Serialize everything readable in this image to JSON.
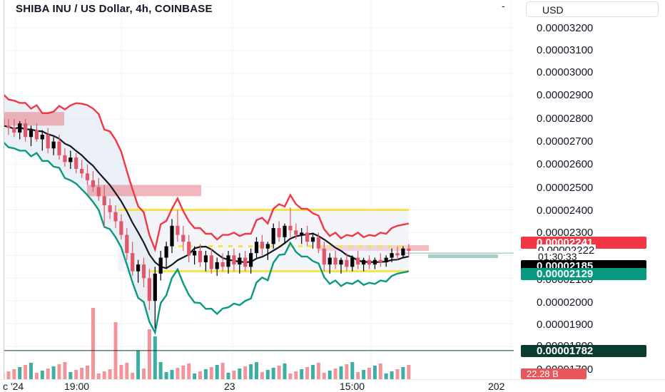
{
  "title": "SHIBA INU / US Dollar, 4h, COINBASE",
  "title_dash": "-",
  "currency_selector": "USD",
  "price_axis": {
    "ticks": [
      "0.00003200",
      "0.00003100",
      "0.00003000",
      "0.00002900",
      "0.00002800",
      "0.00002700",
      "0.00002600",
      "0.00002500",
      "0.00002400",
      "0.00002300",
      "0.00002100",
      "0.00002000",
      "0.00001900",
      "0.00001800",
      "0.00001700"
    ]
  },
  "price_tags": {
    "upper_band": "0.00002241",
    "last_price": "0.00002222",
    "countdown": "01:30:33",
    "moving_average": "0.00002185",
    "lower_band": "0.00002129",
    "horizontal_line": "0.00001782"
  },
  "volume_tag": "22.28 B",
  "time_axis": {
    "labels": [
      "c '24",
      "19:00",
      "23",
      "15:00",
      "202"
    ]
  },
  "colors": {
    "up_candle": "#000000",
    "down_candle": "#e0566a",
    "upper_band": "#f23645",
    "lower_band": "#089981",
    "moving_average": "#131722",
    "range_box_lines": "#f7e24b",
    "supply_zones": "#e8878f",
    "volume_up": "#26a69a",
    "volume_down": "#ef8a8f",
    "current_price_tag": "#f23645",
    "ma_tag": "#000000",
    "lower_tag": "#089981",
    "line_tag": "#0c3b30"
  },
  "chart_data": {
    "type": "candlestick",
    "title": "SHIBA INU / US Dollar, 4h, COINBASE",
    "ylim": [
      1.68e-05,
      3.25e-05
    ],
    "y_scale": "linear",
    "grid": true,
    "candles": [
      {
        "o": 2.8e-05,
        "h": 2.82e-05,
        "l": 2.76e-05,
        "c": 2.77e-05
      },
      {
        "o": 2.77e-05,
        "h": 2.8e-05,
        "l": 2.73e-05,
        "c": 2.76e-05
      },
      {
        "o": 2.76e-05,
        "h": 2.8e-05,
        "l": 2.72e-05,
        "c": 2.74e-05
      },
      {
        "o": 2.74e-05,
        "h": 2.79e-05,
        "l": 2.71e-05,
        "c": 2.78e-05
      },
      {
        "o": 2.78e-05,
        "h": 2.8e-05,
        "l": 2.7e-05,
        "c": 2.72e-05
      },
      {
        "o": 2.72e-05,
        "h": 2.77e-05,
        "l": 2.68e-05,
        "c": 2.75e-05
      },
      {
        "o": 2.75e-05,
        "h": 2.78e-05,
        "l": 2.7e-05,
        "c": 2.71e-05
      },
      {
        "o": 2.71e-05,
        "h": 2.75e-05,
        "l": 2.66e-05,
        "c": 2.73e-05
      },
      {
        "o": 2.73e-05,
        "h": 2.76e-05,
        "l": 2.65e-05,
        "c": 2.67e-05
      },
      {
        "o": 2.67e-05,
        "h": 2.72e-05,
        "l": 2.64e-05,
        "c": 2.7e-05
      },
      {
        "o": 2.7e-05,
        "h": 2.73e-05,
        "l": 2.62e-05,
        "c": 2.64e-05
      },
      {
        "o": 2.64e-05,
        "h": 2.67e-05,
        "l": 2.59e-05,
        "c": 2.61e-05
      },
      {
        "o": 2.61e-05,
        "h": 2.66e-05,
        "l": 2.58e-05,
        "c": 2.63e-05
      },
      {
        "o": 2.63e-05,
        "h": 2.65e-05,
        "l": 2.56e-05,
        "c": 2.58e-05
      },
      {
        "o": 2.58e-05,
        "h": 2.62e-05,
        "l": 2.54e-05,
        "c": 2.56e-05
      },
      {
        "o": 2.56e-05,
        "h": 2.6e-05,
        "l": 2.51e-05,
        "c": 2.53e-05
      },
      {
        "o": 2.53e-05,
        "h": 2.57e-05,
        "l": 2.48e-05,
        "c": 2.5e-05
      },
      {
        "o": 2.5e-05,
        "h": 2.54e-05,
        "l": 2.44e-05,
        "c": 2.46e-05
      },
      {
        "o": 2.46e-05,
        "h": 2.51e-05,
        "l": 2.32e-05,
        "c": 2.42e-05
      },
      {
        "o": 2.42e-05,
        "h": 2.45e-05,
        "l": 2.36e-05,
        "c": 2.39e-05
      },
      {
        "o": 2.39e-05,
        "h": 2.42e-05,
        "l": 2.32e-05,
        "c": 2.35e-05
      },
      {
        "o": 2.35e-05,
        "h": 2.38e-05,
        "l": 2.27e-05,
        "c": 2.29e-05
      },
      {
        "o": 2.29e-05,
        "h": 2.32e-05,
        "l": 2.18e-05,
        "c": 2.21e-05
      },
      {
        "o": 2.21e-05,
        "h": 2.26e-05,
        "l": 2.11e-05,
        "c": 2.13e-05
      },
      {
        "o": 2.13e-05,
        "h": 2.18e-05,
        "l": 2.08e-05,
        "c": 2.16e-05
      },
      {
        "o": 2.16e-05,
        "h": 2.19e-05,
        "l": 2.06e-05,
        "c": 2.1e-05
      },
      {
        "o": 2.1e-05,
        "h": 2.14e-05,
        "l": 1.96e-05,
        "c": 2e-05
      },
      {
        "o": 2e-05,
        "h": 2.15e-05,
        "l": 1.88e-05,
        "c": 2.12e-05
      },
      {
        "o": 2.12e-05,
        "h": 2.22e-05,
        "l": 2.09e-05,
        "c": 2.19e-05
      },
      {
        "o": 2.19e-05,
        "h": 2.26e-05,
        "l": 2.14e-05,
        "c": 2.24e-05
      },
      {
        "o": 2.24e-05,
        "h": 2.36e-05,
        "l": 2.21e-05,
        "c": 2.33e-05
      },
      {
        "o": 2.33e-05,
        "h": 2.4e-05,
        "l": 2.26e-05,
        "c": 2.29e-05
      },
      {
        "o": 2.29e-05,
        "h": 2.33e-05,
        "l": 2.22e-05,
        "c": 2.26e-05
      },
      {
        "o": 2.26e-05,
        "h": 2.29e-05,
        "l": 2.17e-05,
        "c": 2.2e-05
      },
      {
        "o": 2.2e-05,
        "h": 2.24e-05,
        "l": 2.16e-05,
        "c": 2.22e-05
      },
      {
        "o": 2.22e-05,
        "h": 2.25e-05,
        "l": 2.15e-05,
        "c": 2.17e-05
      },
      {
        "o": 2.17e-05,
        "h": 2.22e-05,
        "l": 2.13e-05,
        "c": 2.2e-05
      },
      {
        "o": 2.2e-05,
        "h": 2.23e-05,
        "l": 2.12e-05,
        "c": 2.14e-05
      },
      {
        "o": 2.14e-05,
        "h": 2.19e-05,
        "l": 2.11e-05,
        "c": 2.17e-05
      },
      {
        "o": 2.17e-05,
        "h": 2.21e-05,
        "l": 2.13e-05,
        "c": 2.15e-05
      },
      {
        "o": 2.15e-05,
        "h": 2.22e-05,
        "l": 2.12e-05,
        "c": 2.2e-05
      },
      {
        "o": 2.2e-05,
        "h": 2.23e-05,
        "l": 2.13e-05,
        "c": 2.16e-05
      },
      {
        "o": 2.16e-05,
        "h": 2.21e-05,
        "l": 2.12e-05,
        "c": 2.19e-05
      },
      {
        "o": 2.19e-05,
        "h": 2.22e-05,
        "l": 2.13e-05,
        "c": 2.15e-05
      },
      {
        "o": 2.15e-05,
        "h": 2.23e-05,
        "l": 2.12e-05,
        "c": 2.21e-05
      },
      {
        "o": 2.21e-05,
        "h": 2.28e-05,
        "l": 2.19e-05,
        "c": 2.26e-05
      },
      {
        "o": 2.26e-05,
        "h": 2.29e-05,
        "l": 2.2e-05,
        "c": 2.23e-05
      },
      {
        "o": 2.23e-05,
        "h": 2.26e-05,
        "l": 2.18e-05,
        "c": 2.25e-05
      },
      {
        "o": 2.25e-05,
        "h": 2.34e-05,
        "l": 2.23e-05,
        "c": 2.32e-05
      },
      {
        "o": 2.32e-05,
        "h": 2.35e-05,
        "l": 2.26e-05,
        "c": 2.28e-05
      },
      {
        "o": 2.28e-05,
        "h": 2.34e-05,
        "l": 2.25e-05,
        "c": 2.33e-05
      },
      {
        "o": 2.33e-05,
        "h": 2.41e-05,
        "l": 2.28e-05,
        "c": 2.31e-05
      },
      {
        "o": 2.31e-05,
        "h": 2.34e-05,
        "l": 2.27e-05,
        "c": 2.29e-05
      },
      {
        "o": 2.29e-05,
        "h": 2.32e-05,
        "l": 2.25e-05,
        "c": 2.3e-05
      },
      {
        "o": 2.3e-05,
        "h": 2.33e-05,
        "l": 2.24e-05,
        "c": 2.26e-05
      },
      {
        "o": 2.26e-05,
        "h": 2.3e-05,
        "l": 2.23e-05,
        "c": 2.28e-05
      },
      {
        "o": 2.28e-05,
        "h": 2.3e-05,
        "l": 2.21e-05,
        "c": 2.23e-05
      },
      {
        "o": 2.23e-05,
        "h": 2.26e-05,
        "l": 2.13e-05,
        "c": 2.16e-05
      },
      {
        "o": 2.16e-05,
        "h": 2.21e-05,
        "l": 2.12e-05,
        "c": 2.19e-05
      },
      {
        "o": 2.19e-05,
        "h": 2.22e-05,
        "l": 2.14e-05,
        "c": 2.16e-05
      },
      {
        "o": 2.16e-05,
        "h": 2.19e-05,
        "l": 2.12e-05,
        "c": 2.18e-05
      },
      {
        "o": 2.18e-05,
        "h": 2.21e-05,
        "l": 2.13e-05,
        "c": 2.15e-05
      },
      {
        "o": 2.15e-05,
        "h": 2.2e-05,
        "l": 2.13e-05,
        "c": 2.19e-05
      },
      {
        "o": 2.19e-05,
        "h": 2.22e-05,
        "l": 2.14e-05,
        "c": 2.16e-05
      },
      {
        "o": 2.16e-05,
        "h": 2.19e-05,
        "l": 2.13e-05,
        "c": 2.18e-05
      },
      {
        "o": 2.18e-05,
        "h": 2.2e-05,
        "l": 2.14e-05,
        "c": 2.16e-05
      },
      {
        "o": 2.16e-05,
        "h": 2.19e-05,
        "l": 2.14e-05,
        "c": 2.18e-05
      },
      {
        "o": 2.18e-05,
        "h": 2.21e-05,
        "l": 2.15e-05,
        "c": 2.17e-05
      },
      {
        "o": 2.17e-05,
        "h": 2.2e-05,
        "l": 2.15e-05,
        "c": 2.19e-05
      },
      {
        "o": 2.19e-05,
        "h": 2.23e-05,
        "l": 2.17e-05,
        "c": 2.21e-05
      },
      {
        "o": 2.21e-05,
        "h": 2.24e-05,
        "l": 2.18e-05,
        "c": 2.2e-05
      },
      {
        "o": 2.2e-05,
        "h": 2.24e-05,
        "l": 2.19e-05,
        "c": 2.23e-05
      },
      {
        "o": 2.23e-05,
        "h": 2.25e-05,
        "l": 2.19e-05,
        "c": 2.22e-05
      }
    ],
    "indicators": {
      "upper_band_level": 2.241e-05,
      "moving_average_level": 2.185e-05,
      "lower_band_level": 2.129e-05,
      "horizontal_line_level": 1.782e-05,
      "range_box_top": 2.4e-05,
      "range_box_bottom": 2.13e-05,
      "range_box_mid": 2.24e-05
    }
  }
}
